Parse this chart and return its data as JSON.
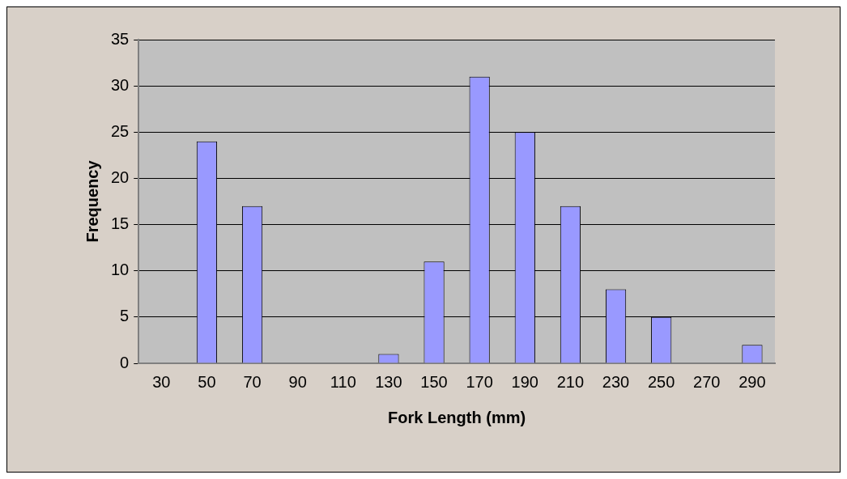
{
  "chart_data": {
    "type": "bar",
    "xlabel": "Fork Length (mm)",
    "ylabel": "Frequency",
    "categories": [
      "30",
      "50",
      "70",
      "90",
      "110",
      "130",
      "150",
      "170",
      "190",
      "210",
      "230",
      "250",
      "270",
      "290"
    ],
    "values": [
      0,
      24,
      17,
      0,
      0,
      1,
      11,
      31,
      25,
      17,
      8,
      5,
      0,
      2
    ],
    "color": "#9999ff",
    "ylim": [
      0,
      35
    ],
    "yticks": [
      0,
      5,
      10,
      15,
      20,
      25,
      30,
      35
    ],
    "grid": "y",
    "legend": false
  }
}
